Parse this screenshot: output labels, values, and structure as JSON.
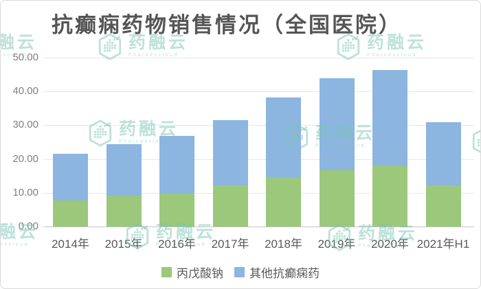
{
  "card": {
    "title": "抗癫痫药物销售情况（全国医院）"
  },
  "watermark": {
    "brand": "药融云",
    "subbrand": "Pharnexcloud",
    "color": "rgba(122,198,180,0.50)"
  },
  "chart_data": {
    "type": "bar",
    "stacked": true,
    "title": "抗癫痫药物销售情况（全国医院）",
    "categories": [
      "2014年",
      "2015年",
      "2016年",
      "2017年",
      "2018年",
      "2019年",
      "2020年",
      "2021年H1"
    ],
    "series": [
      {
        "name": "丙戊酸钠",
        "color": "#9bc87b",
        "values": [
          7.7,
          9.1,
          9.8,
          12.2,
          14.6,
          16.6,
          18.1,
          12.2
        ]
      },
      {
        "name": "其他抗癫痫药",
        "color": "#8cb5e0",
        "values": [
          13.9,
          15.3,
          17.1,
          19.4,
          23.7,
          27.3,
          28.3,
          18.6
        ]
      }
    ],
    "totals": [
      21.6,
      24.4,
      26.9,
      31.6,
      38.3,
      43.9,
      46.4,
      30.8
    ],
    "xlabel": "",
    "ylabel": "",
    "ylim": [
      0,
      50
    ],
    "ytick_step": 10,
    "ytick_labels": [
      "0.00",
      "10.00",
      "20.00",
      "30.00",
      "40.00",
      "50.00"
    ],
    "grid": true,
    "legend_position": "bottom"
  }
}
